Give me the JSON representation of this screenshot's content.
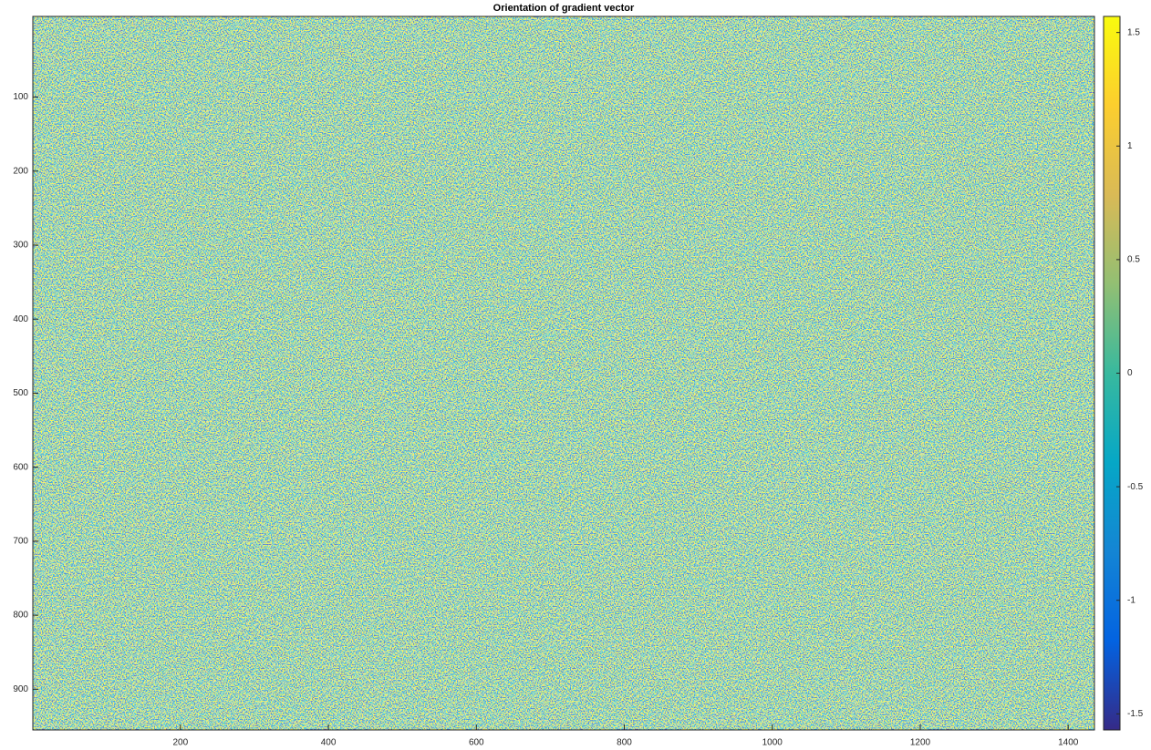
{
  "chart_data": {
    "type": "image",
    "title": "Orientation of gradient vector",
    "xlim": [
      0.5,
      1435.5
    ],
    "ylim": [
      -9,
      955
    ],
    "y_reversed": true,
    "xticks": [
      200,
      400,
      600,
      800,
      1000,
      1200,
      1400
    ],
    "yticks": [
      100,
      200,
      300,
      400,
      500,
      600,
      700,
      800,
      900
    ],
    "colorbar": {
      "clim": [
        -1.5708,
        1.5708
      ],
      "ticks": [
        -1.5,
        -1,
        -0.5,
        0,
        0.5,
        1,
        1.5
      ],
      "colormap": [
        "#352a87",
        "#0363e1",
        "#1485d4",
        "#06a7c6",
        "#38b99e",
        "#92bf73",
        "#d9ba56",
        "#fcce2e",
        "#f9fb0e"
      ]
    }
  }
}
